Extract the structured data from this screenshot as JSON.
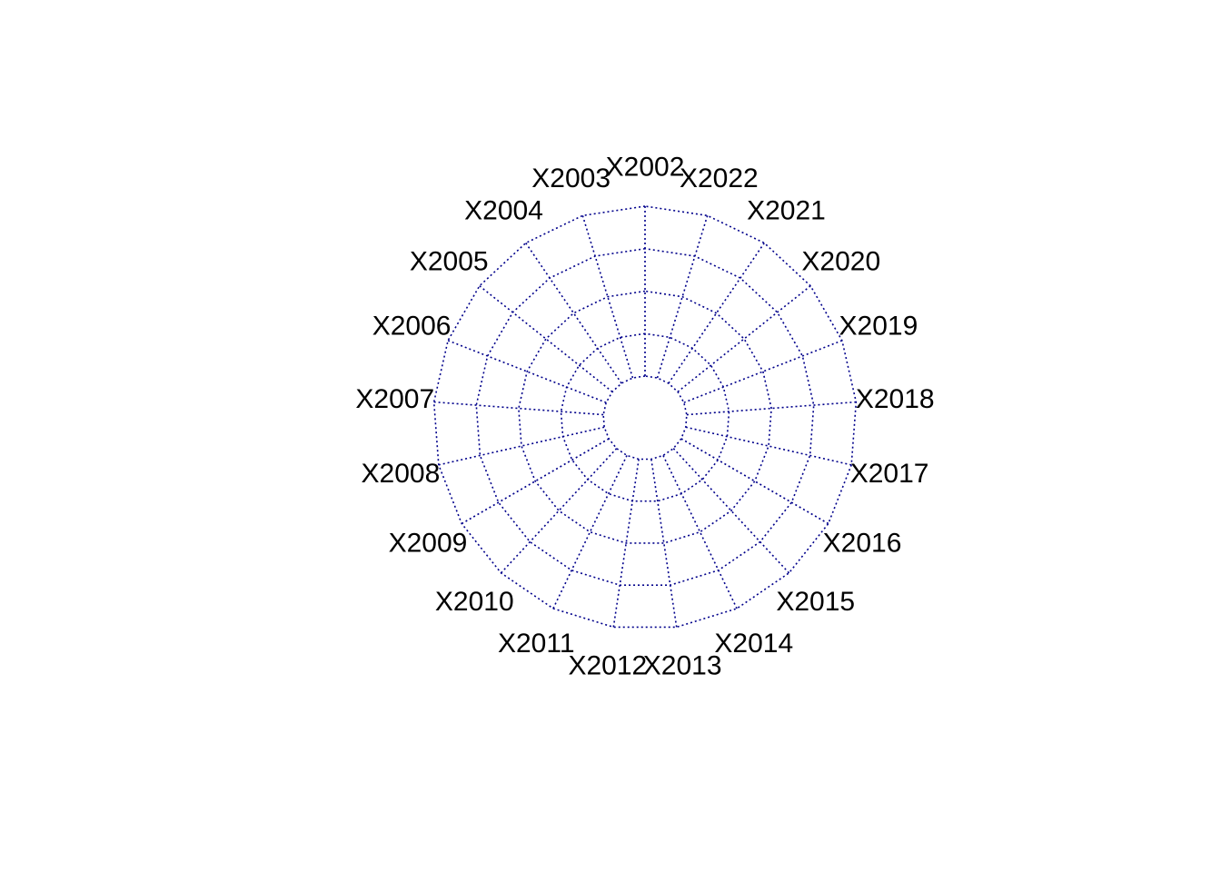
{
  "chart_data": {
    "type": "radar",
    "axes": [
      "X2002",
      "X2003",
      "X2004",
      "X2005",
      "X2006",
      "X2007",
      "X2008",
      "X2009",
      "X2010",
      "X2011",
      "X2012",
      "X2013",
      "X2014",
      "X2015",
      "X2016",
      "X2017",
      "X2018",
      "X2019",
      "X2020",
      "X2021",
      "X2022"
    ],
    "grid_levels": 5,
    "grid": true,
    "grid_line_style": "dotted",
    "grid_color": "#00008B",
    "label_color": "#000000",
    "series": []
  }
}
